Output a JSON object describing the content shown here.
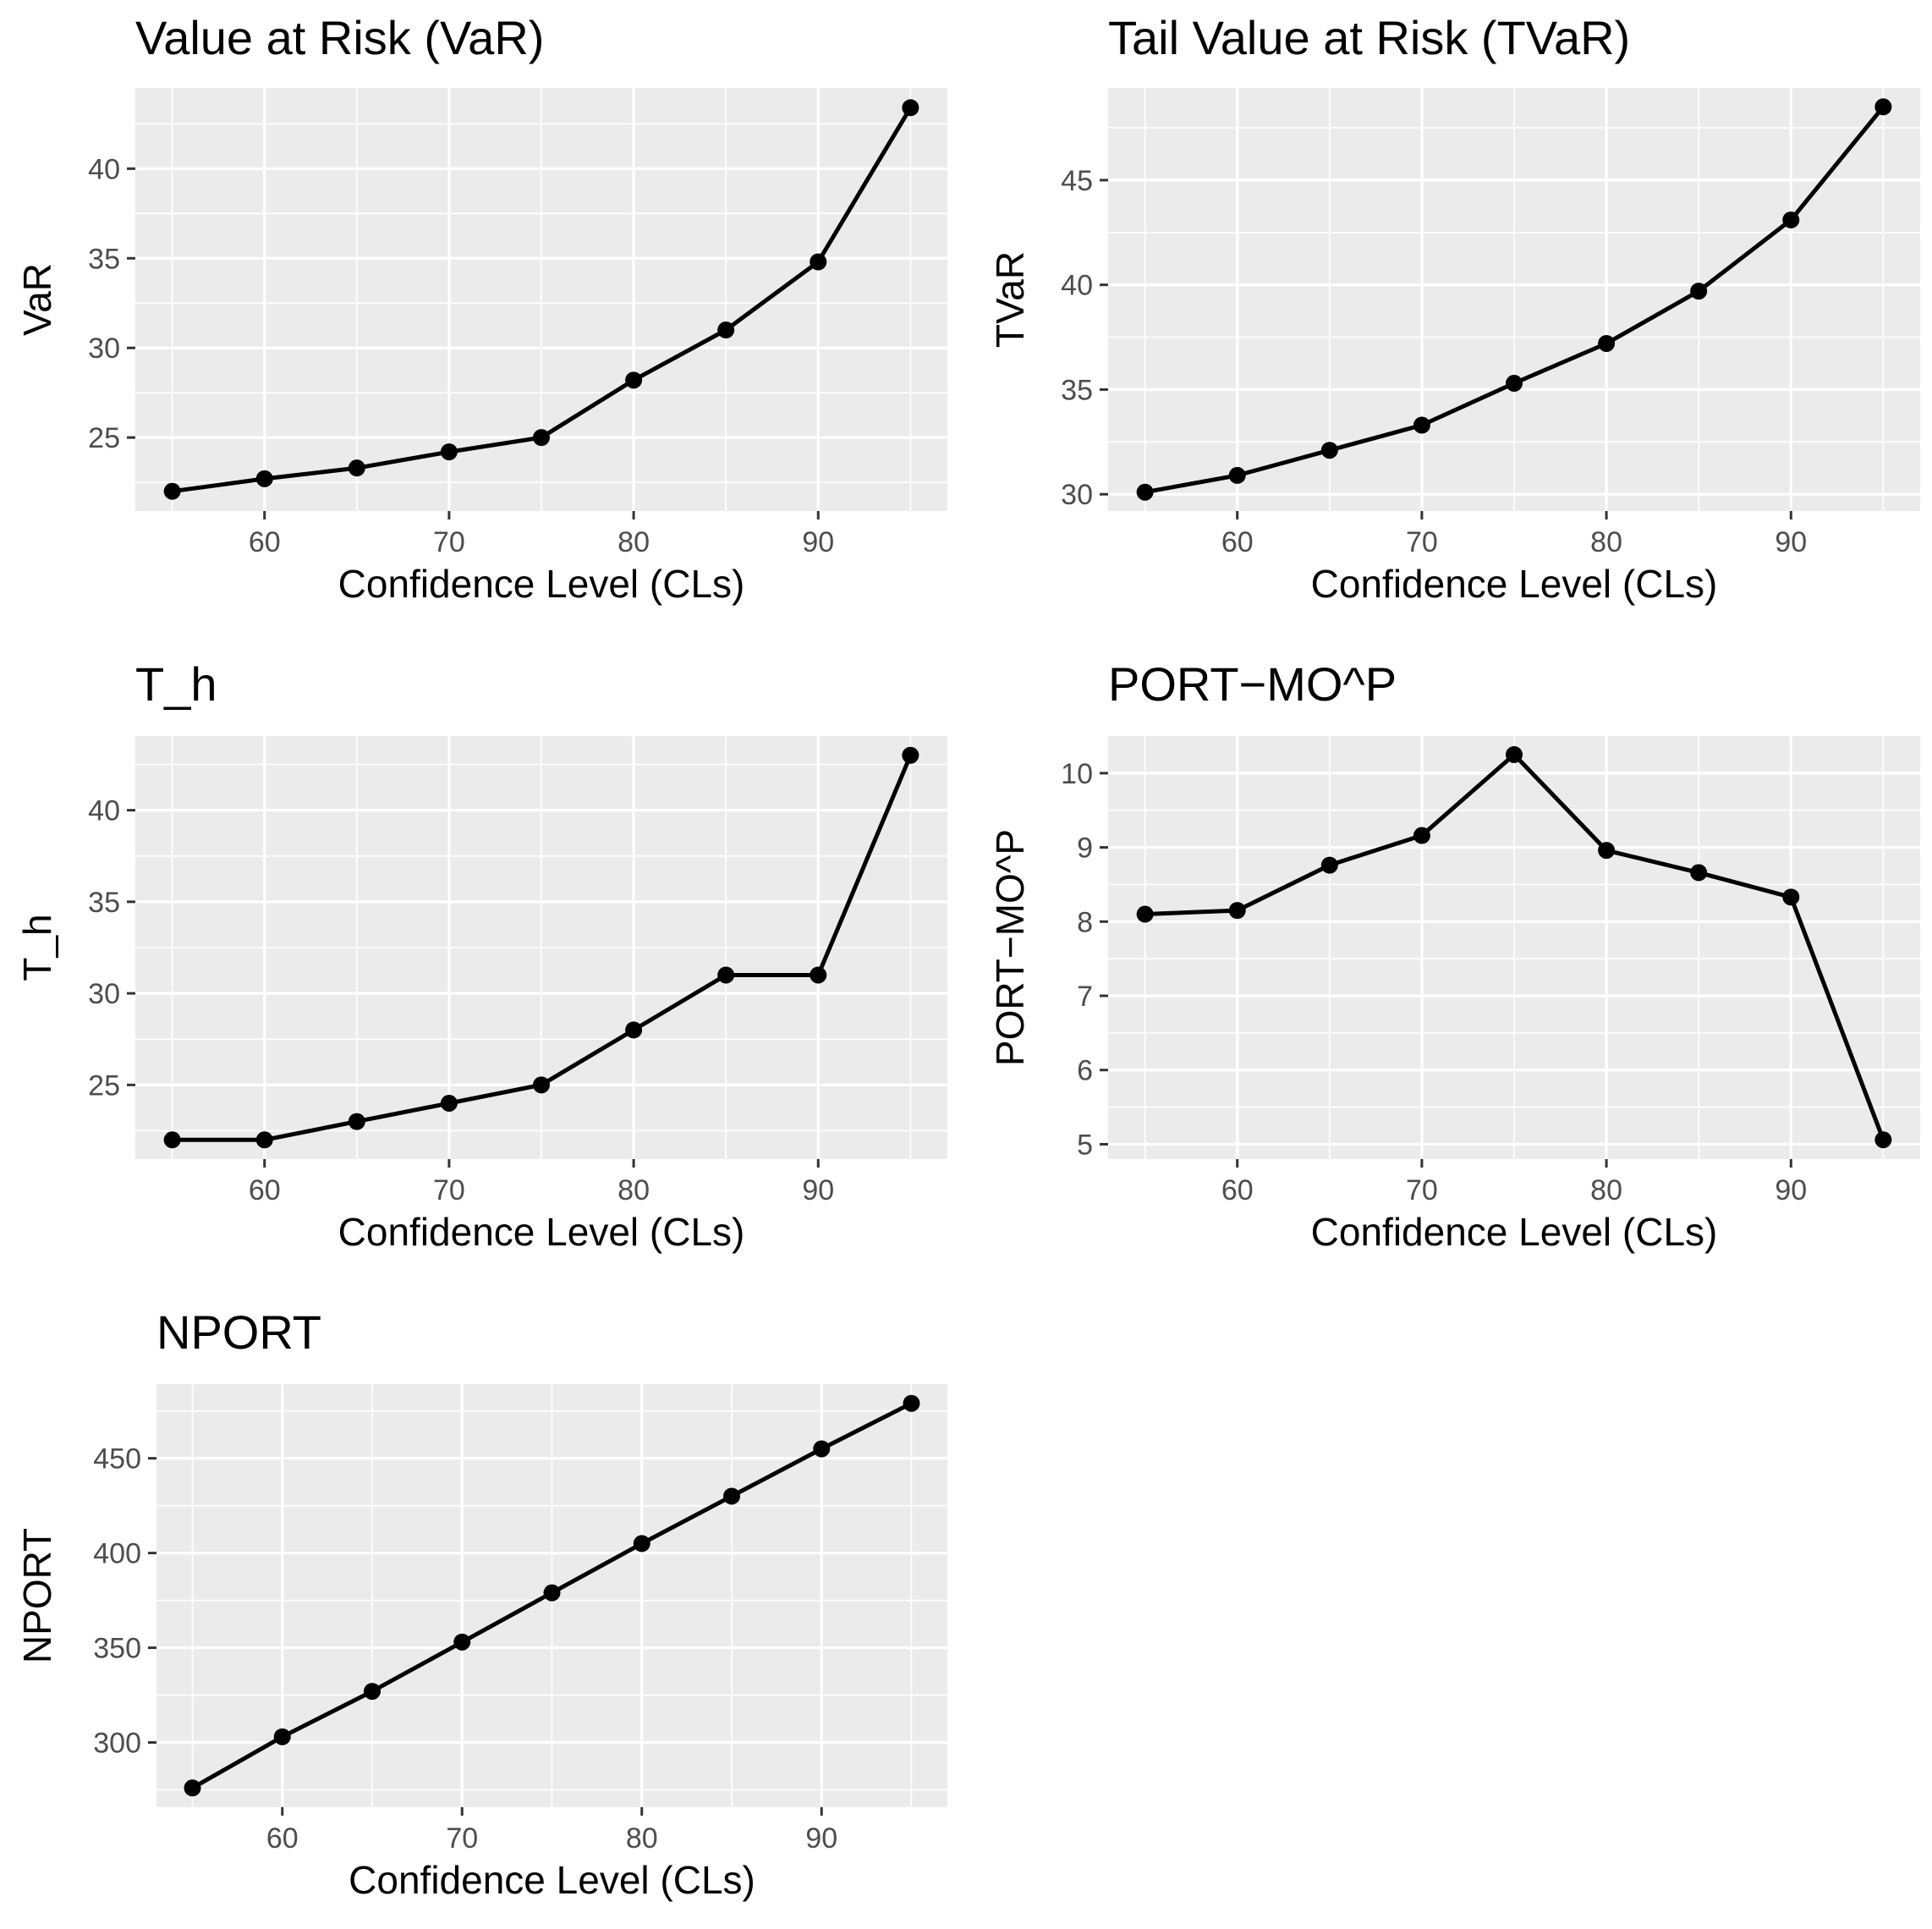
{
  "chart_data": [
    {
      "type": "line",
      "title": "Value at Risk (VaR)",
      "xlabel": "Confidence Level (CLs)",
      "ylabel": "VaR",
      "x": [
        55,
        60,
        65,
        70,
        75,
        80,
        85,
        90,
        95
      ],
      "values": [
        22.0,
        22.7,
        23.3,
        24.2,
        25.0,
        28.2,
        31.0,
        34.8,
        43.4
      ],
      "xlim": [
        53,
        97
      ],
      "ylim": [
        20.9,
        44.5
      ],
      "xticks": [
        60,
        70,
        80,
        90
      ],
      "yticks": [
        25,
        30,
        35,
        40
      ],
      "x_tick_labels": [
        "60",
        "70",
        "80",
        "90"
      ],
      "y_tick_labels": [
        "25",
        "30",
        "35",
        "40"
      ],
      "grid": true
    },
    {
      "type": "line",
      "title": "Tail Value at Risk (TVaR)",
      "xlabel": "Confidence Level (CLs)",
      "ylabel": "TVaR",
      "x": [
        55,
        60,
        65,
        70,
        75,
        80,
        85,
        90,
        95
      ],
      "values": [
        30.1,
        30.9,
        32.1,
        33.3,
        35.3,
        37.2,
        39.7,
        43.1,
        48.5
      ],
      "xlim": [
        53,
        97
      ],
      "ylim": [
        29.2,
        49.4
      ],
      "xticks": [
        60,
        70,
        80,
        90
      ],
      "yticks": [
        30,
        35,
        40,
        45
      ],
      "x_tick_labels": [
        "60",
        "70",
        "80",
        "90"
      ],
      "y_tick_labels": [
        "30",
        "35",
        "40",
        "45"
      ],
      "grid": true
    },
    {
      "type": "line",
      "title": "T_h",
      "xlabel": "Confidence Level (CLs)",
      "ylabel": "T_h",
      "x": [
        55,
        60,
        65,
        70,
        75,
        80,
        85,
        90,
        95
      ],
      "values": [
        22,
        22,
        23,
        24,
        25,
        28,
        31,
        31,
        43
      ],
      "xlim": [
        53,
        97
      ],
      "ylim": [
        20.95,
        44.05
      ],
      "xticks": [
        60,
        70,
        80,
        90
      ],
      "yticks": [
        25,
        30,
        35,
        40
      ],
      "x_tick_labels": [
        "60",
        "70",
        "80",
        "90"
      ],
      "y_tick_labels": [
        "25",
        "30",
        "35",
        "40"
      ],
      "grid": true
    },
    {
      "type": "line",
      "title": "PORT−MO^P",
      "xlabel": "Confidence Level (CLs)",
      "ylabel": "PORT−MO^P",
      "x": [
        55,
        60,
        65,
        70,
        75,
        80,
        85,
        90,
        95
      ],
      "values": [
        8.1,
        8.15,
        8.76,
        9.16,
        10.25,
        8.96,
        8.66,
        8.33,
        5.06
      ],
      "xlim": [
        53,
        97
      ],
      "ylim": [
        4.8,
        10.5
      ],
      "xticks": [
        60,
        70,
        80,
        90
      ],
      "yticks": [
        5,
        6,
        7,
        8,
        9,
        10
      ],
      "x_tick_labels": [
        "60",
        "70",
        "80",
        "90"
      ],
      "y_tick_labels": [
        "5",
        "6",
        "7",
        "8",
        "9",
        "10"
      ],
      "grid": true
    },
    {
      "type": "line",
      "title": "NPORT",
      "xlabel": "Confidence Level (CLs)",
      "ylabel": "NPORT",
      "x": [
        55,
        60,
        65,
        70,
        75,
        80,
        85,
        90,
        95
      ],
      "values": [
        276,
        303,
        327,
        353,
        379,
        405,
        430,
        455,
        479
      ],
      "xlim": [
        53,
        97
      ],
      "ylim": [
        265.85,
        489.15
      ],
      "xticks": [
        60,
        70,
        80,
        90
      ],
      "yticks": [
        300,
        350,
        400,
        450
      ],
      "x_tick_labels": [
        "60",
        "70",
        "80",
        "90"
      ],
      "y_tick_labels": [
        "300",
        "350",
        "400",
        "450"
      ],
      "grid": true
    }
  ]
}
